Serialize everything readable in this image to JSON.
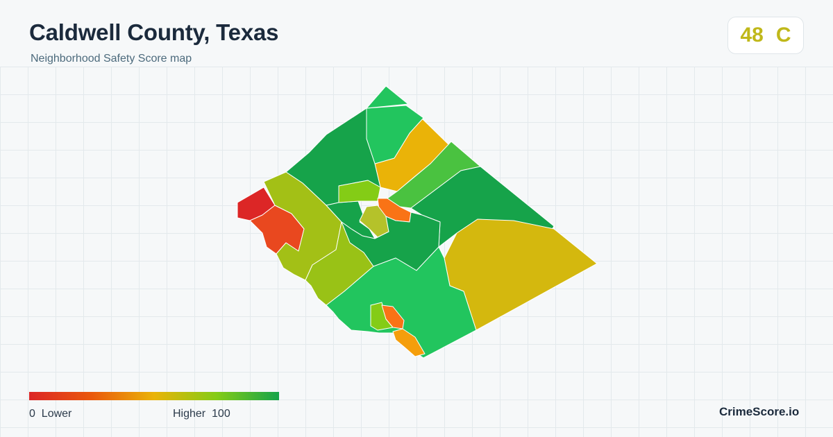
{
  "header": {
    "title": "Caldwell County, Texas",
    "subtitle": "Neighborhood Safety Score map"
  },
  "score": {
    "value": "48",
    "grade": "C",
    "color": "#c0b81a"
  },
  "legend": {
    "low_value": "0",
    "low_label": "Lower",
    "high_label": "Higher",
    "high_value": "100",
    "colors": [
      "#dc2626",
      "#ea580c",
      "#eab308",
      "#84cc16",
      "#16a34a"
    ]
  },
  "brand": "CrimeScore.io",
  "map": {
    "regions": [
      {
        "id": "north-tip",
        "color": "#22c55e"
      },
      {
        "id": "north-upper",
        "color": "#22c55e"
      },
      {
        "id": "north-west",
        "color": "#16a34a"
      },
      {
        "id": "north-east",
        "color": "#eab308"
      },
      {
        "id": "east-band",
        "color": "#4ac240"
      },
      {
        "id": "east-central",
        "color": "#16a34a"
      },
      {
        "id": "far-west",
        "color": "#dc2626"
      },
      {
        "id": "west-2",
        "color": "#e9481f"
      },
      {
        "id": "west-3",
        "color": "#a3c016"
      },
      {
        "id": "central-west",
        "color": "#16a34a"
      },
      {
        "id": "city-lockhart-n",
        "color": "#84cc16"
      },
      {
        "id": "city-lockhart-e",
        "color": "#f97316"
      },
      {
        "id": "city-lockhart-s",
        "color": "#b5c22a"
      },
      {
        "id": "central",
        "color": "#16a34a"
      },
      {
        "id": "south-west",
        "color": "#99c216"
      },
      {
        "id": "south-east",
        "color": "#d4b80e"
      },
      {
        "id": "south",
        "color": "#22c55e"
      },
      {
        "id": "luling-1",
        "color": "#84cc16"
      },
      {
        "id": "luling-2",
        "color": "#f97316"
      },
      {
        "id": "luling-3",
        "color": "#f59e0b"
      }
    ]
  }
}
